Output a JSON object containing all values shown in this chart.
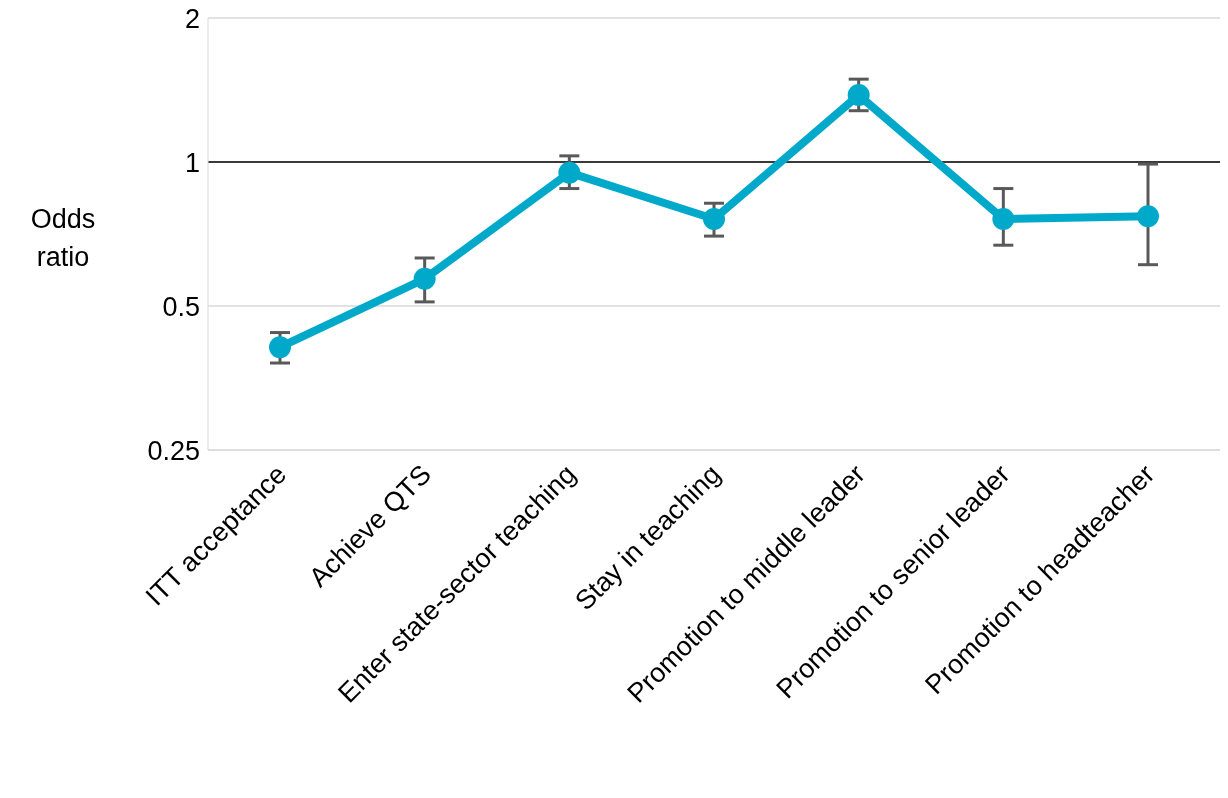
{
  "chart_data": {
    "type": "line",
    "ylabel": "Odds ratio",
    "categories": [
      "ITT acceptance",
      "Achieve QTS",
      "Enter state-sector teaching",
      "Stay in teaching",
      "Promotion to middle leader",
      "Promotion to senior leader",
      "Promotion to headteacher"
    ],
    "series": [
      {
        "color": "#00a9c9",
        "values": [
          0.41,
          0.57,
          0.95,
          0.76,
          1.38,
          0.76,
          0.77
        ],
        "errors": [
          [
            0.38,
            0.44
          ],
          [
            0.51,
            0.63
          ],
          [
            0.88,
            1.03
          ],
          [
            0.7,
            0.82
          ],
          [
            1.28,
            1.49
          ],
          [
            0.67,
            0.88
          ],
          [
            0.61,
            0.99
          ]
        ]
      }
    ],
    "log": true,
    "ylim": [
      0.25,
      2
    ],
    "yticks": [
      0.25,
      0.5,
      1,
      2
    ],
    "grid": "y",
    "marker": "circle",
    "line_style": "solid",
    "ref_lines": [
      {
        "axis": "y",
        "value": 1,
        "color": "#000000"
      }
    ]
  }
}
